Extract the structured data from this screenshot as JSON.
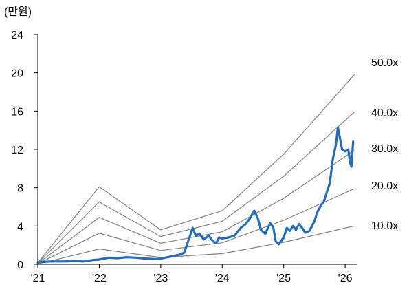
{
  "chart_data": {
    "type": "line",
    "unit_label": "(만원)",
    "ylim": [
      0,
      24
    ],
    "y_ticks": [
      "0",
      "4",
      "8",
      "12",
      "16",
      "20",
      "24"
    ],
    "y_tick_values": [
      0,
      4,
      8,
      12,
      16,
      20,
      24
    ],
    "x_ticks": [
      "'21",
      "'22",
      "'23",
      "'24",
      "'25",
      "'26"
    ],
    "x_tick_values": [
      2021,
      2022,
      2023,
      2024,
      2025,
      2026
    ],
    "xlim": [
      2021,
      2026.2
    ],
    "grid": false,
    "colors": {
      "price": "#1f6cc7",
      "band": "#808080",
      "axis": "#000000"
    },
    "bands": [
      {
        "name": "50.0x",
        "points": [
          [
            2021,
            0.15
          ],
          [
            2022,
            8.1
          ],
          [
            2023,
            3.6
          ],
          [
            2024,
            5.6
          ],
          [
            2025,
            11.5
          ],
          [
            2026.15,
            19.8
          ]
        ]
      },
      {
        "name": "40.0x",
        "points": [
          [
            2021,
            0.12
          ],
          [
            2022,
            6.5
          ],
          [
            2023,
            2.9
          ],
          [
            2024,
            4.5
          ],
          [
            2025,
            9.2
          ],
          [
            2026.15,
            15.9
          ]
        ]
      },
      {
        "name": "30.0x",
        "points": [
          [
            2021,
            0.09
          ],
          [
            2022,
            4.9
          ],
          [
            2023,
            2.2
          ],
          [
            2024,
            3.4
          ],
          [
            2025,
            6.9
          ],
          [
            2026.15,
            11.9
          ]
        ]
      },
      {
        "name": "20.0x",
        "points": [
          [
            2021,
            0.06
          ],
          [
            2022,
            3.25
          ],
          [
            2023,
            1.45
          ],
          [
            2024,
            2.25
          ],
          [
            2025,
            4.6
          ],
          [
            2026.15,
            7.9
          ]
        ]
      },
      {
        "name": "10.0x",
        "points": [
          [
            2021,
            0.03
          ],
          [
            2022,
            1.6
          ],
          [
            2023,
            0.72
          ],
          [
            2024,
            1.12
          ],
          [
            2025,
            2.3
          ],
          [
            2026.15,
            4.0
          ]
        ]
      }
    ],
    "series": [
      {
        "points": [
          [
            2021.0,
            0.2
          ],
          [
            2021.2,
            0.3
          ],
          [
            2021.4,
            0.3
          ],
          [
            2021.6,
            0.35
          ],
          [
            2021.75,
            0.3
          ],
          [
            2021.9,
            0.45
          ],
          [
            2022.0,
            0.5
          ],
          [
            2022.15,
            0.7
          ],
          [
            2022.3,
            0.65
          ],
          [
            2022.45,
            0.75
          ],
          [
            2022.6,
            0.7
          ],
          [
            2022.75,
            0.6
          ],
          [
            2022.9,
            0.55
          ],
          [
            2023.0,
            0.6
          ],
          [
            2023.15,
            0.8
          ],
          [
            2023.3,
            1.0
          ],
          [
            2023.38,
            1.2
          ],
          [
            2023.45,
            2.5
          ],
          [
            2023.52,
            3.8
          ],
          [
            2023.57,
            3.0
          ],
          [
            2023.63,
            3.2
          ],
          [
            2023.7,
            2.6
          ],
          [
            2023.78,
            3.0
          ],
          [
            2023.85,
            2.4
          ],
          [
            2023.9,
            2.2
          ],
          [
            2023.95,
            2.8
          ],
          [
            2024.0,
            2.7
          ],
          [
            2024.1,
            2.8
          ],
          [
            2024.2,
            3.0
          ],
          [
            2024.3,
            3.8
          ],
          [
            2024.38,
            4.2
          ],
          [
            2024.45,
            4.8
          ],
          [
            2024.52,
            5.6
          ],
          [
            2024.58,
            4.8
          ],
          [
            2024.63,
            3.6
          ],
          [
            2024.7,
            3.2
          ],
          [
            2024.78,
            4.3
          ],
          [
            2024.83,
            3.9
          ],
          [
            2024.87,
            2.4
          ],
          [
            2024.92,
            2.1
          ],
          [
            2025.0,
            2.8
          ],
          [
            2025.05,
            3.8
          ],
          [
            2025.1,
            3.5
          ],
          [
            2025.15,
            4.0
          ],
          [
            2025.2,
            3.6
          ],
          [
            2025.25,
            4.2
          ],
          [
            2025.3,
            3.8
          ],
          [
            2025.35,
            3.3
          ],
          [
            2025.42,
            3.5
          ],
          [
            2025.5,
            4.5
          ],
          [
            2025.55,
            5.5
          ],
          [
            2025.6,
            6.1
          ],
          [
            2025.65,
            6.5
          ],
          [
            2025.7,
            7.5
          ],
          [
            2025.75,
            8.5
          ],
          [
            2025.8,
            11.0
          ],
          [
            2025.85,
            12.5
          ],
          [
            2025.88,
            14.3
          ],
          [
            2025.92,
            13.0
          ],
          [
            2025.95,
            12.0
          ],
          [
            2026.0,
            11.8
          ],
          [
            2026.05,
            12.0
          ],
          [
            2026.08,
            10.6
          ],
          [
            2026.1,
            10.2
          ],
          [
            2026.13,
            12.8
          ]
        ]
      }
    ]
  }
}
